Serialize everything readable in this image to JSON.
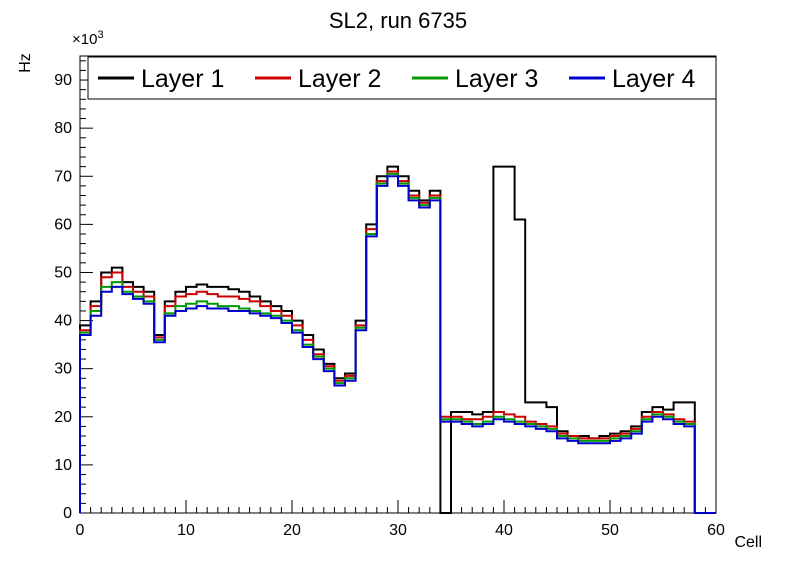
{
  "title": "SL2, run 6735",
  "axes": {
    "x_label": "Cell",
    "y_label": "Hz",
    "y_exponent_base": "×10",
    "y_exponent": "3",
    "x_ticks": [
      0,
      10,
      20,
      30,
      40,
      50,
      60
    ],
    "y_ticks": [
      0,
      10,
      20,
      30,
      40,
      50,
      60,
      70,
      80,
      90
    ],
    "x_minor_step": 1,
    "y_minor_step": 2
  },
  "chart_data": {
    "type": "line",
    "style": "step-histogram",
    "title": "SL2, run 6735",
    "xlabel": "Cell",
    "ylabel": "Hz",
    "xlim": [
      0,
      60
    ],
    "ylim": [
      0,
      95
    ],
    "y_scale_factor": 1000,
    "bin_width": 1,
    "grid": false,
    "legend_position": "top",
    "series": [
      {
        "name": "Layer 1",
        "color": "#000000",
        "values": [
          39,
          44,
          50,
          51,
          48,
          47,
          46,
          37,
          44,
          46,
          47,
          47.5,
          47,
          47,
          46.5,
          46,
          45,
          44,
          43,
          42,
          40,
          37,
          34,
          31,
          28,
          29,
          40,
          60,
          70,
          72,
          70,
          67,
          65,
          67,
          0,
          21,
          21,
          20.5,
          21,
          72,
          72,
          61,
          23,
          23,
          22,
          17,
          16,
          16,
          15.5,
          16,
          16.5,
          17,
          18,
          21,
          22,
          21.5,
          23,
          23,
          0,
          0
        ]
      },
      {
        "name": "Layer 2",
        "color": "#cc0000",
        "values": [
          38,
          43,
          49,
          50,
          47,
          46,
          45,
          36.5,
          43,
          45,
          45.5,
          46,
          45.5,
          45,
          45,
          44.5,
          44,
          43,
          42,
          41,
          39,
          36,
          33,
          30.5,
          27.5,
          28.5,
          39,
          59,
          69,
          71,
          69,
          66,
          64.5,
          66,
          20,
          20,
          19.5,
          19.5,
          20,
          21,
          20.5,
          20,
          19,
          18.5,
          18,
          16.5,
          16,
          15.5,
          15.5,
          15.5,
          16,
          16.5,
          17.5,
          20,
          21,
          20.5,
          19.5,
          19,
          0,
          0
        ]
      },
      {
        "name": "Layer 3",
        "color": "#009900",
        "values": [
          37.5,
          42,
          47,
          48,
          46,
          45,
          44,
          36,
          41.5,
          43,
          43.5,
          44,
          43.5,
          43,
          43,
          42.5,
          42,
          41.5,
          41,
          40,
          38,
          35,
          32.5,
          30,
          27,
          28,
          38.5,
          58,
          68.5,
          70.5,
          68.5,
          65.5,
          64,
          65.5,
          19.5,
          19.5,
          19,
          18.5,
          19,
          20,
          19.5,
          19,
          18.5,
          18,
          17.5,
          16,
          15.5,
          15,
          15,
          15,
          15.5,
          16,
          17,
          19.5,
          20.5,
          20,
          19,
          18.5,
          0,
          0
        ]
      },
      {
        "name": "Layer 4",
        "color": "#0000cc",
        "values": [
          37,
          41,
          46,
          47,
          45.5,
          44.5,
          43.5,
          35.5,
          41,
          42,
          42.5,
          43,
          42.5,
          42.5,
          42,
          42,
          41.5,
          41,
          40.5,
          39.5,
          37.5,
          34.5,
          32,
          29.5,
          26.5,
          27.5,
          38,
          57.5,
          68,
          70,
          68,
          65,
          63.5,
          65,
          19,
          19,
          18.5,
          18,
          18.5,
          19.5,
          19,
          18.5,
          18,
          17.5,
          17,
          15.5,
          15,
          14.5,
          14.5,
          14.5,
          15,
          15.5,
          16.5,
          19,
          20,
          19.5,
          18.5,
          18,
          0,
          0
        ]
      }
    ]
  }
}
